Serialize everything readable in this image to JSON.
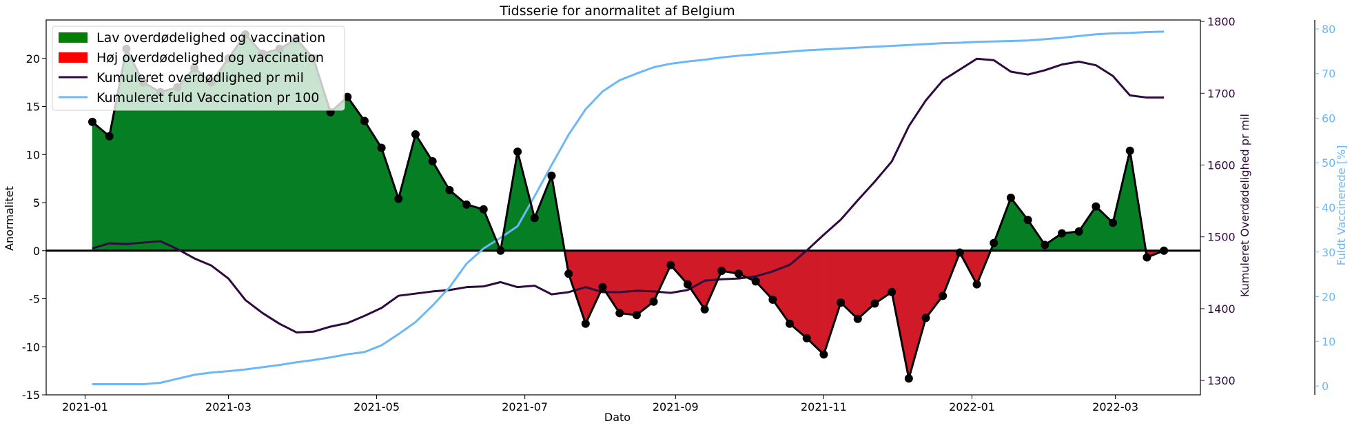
{
  "chart_data": {
    "type": "line",
    "title": "Tidsserie for anormalitet af Belgium",
    "xlabel": "Dato",
    "ylabel": "Anormalitet",
    "ylabel_right1": "Kumuleret Overdødelighed pr mil",
    "ylabel_right2": "Fuldt Vaccinerede [%]",
    "ylim": [
      -15,
      24
    ],
    "ylim_right1": [
      1280,
      1802
    ],
    "ylim_right2": [
      -2,
      82
    ],
    "x_ticks": [
      "2021-01",
      "2021-03",
      "2021-05",
      "2021-07",
      "2021-09",
      "2021-11",
      "2022-01",
      "2022-03"
    ],
    "x_tick_dates": [
      "2021-01-01",
      "2021-03-01",
      "2021-05-01",
      "2021-07-01",
      "2021-09-01",
      "2021-11-01",
      "2022-01-01",
      "2022-03-01"
    ],
    "y_ticks": [
      -15,
      -10,
      -5,
      0,
      5,
      10,
      15,
      20
    ],
    "y_ticks_right1": [
      1300,
      1400,
      1500,
      1600,
      1700,
      1800
    ],
    "y_ticks_right2": [
      0,
      10,
      20,
      30,
      40,
      50,
      60,
      70,
      80
    ],
    "legend": {
      "placement": "top-left",
      "entries": [
        {
          "label": "Lav overdødelighed og vaccination",
          "kind": "patch",
          "color": "#008000"
        },
        {
          "label": "Høj overdødelighed og vaccination",
          "kind": "patch",
          "color": "#ff0000"
        },
        {
          "label": "Kumuleret overdødlighed pr mil",
          "kind": "line",
          "color": "#2e0a3e"
        },
        {
          "label": "Kumuleret fuld Vaccination pr 100",
          "kind": "line",
          "color": "#6cb8f6"
        }
      ]
    },
    "colors": {
      "positive_fill": "#067f24",
      "negative_fill": "#d11a28",
      "anomaly_line": "#000000",
      "mortality_line": "#2e0a3e",
      "vaccination_line": "#6cb8f6"
    },
    "series": [
      {
        "key": "anomaly",
        "axis": "left",
        "dates": [
          "2021-01-04",
          "2021-01-11",
          "2021-01-18",
          "2021-01-25",
          "2021-02-01",
          "2021-02-08",
          "2021-02-15",
          "2021-02-22",
          "2021-03-01",
          "2021-03-08",
          "2021-03-15",
          "2021-03-22",
          "2021-03-29",
          "2021-04-05",
          "2021-04-12",
          "2021-04-19",
          "2021-04-26",
          "2021-05-03",
          "2021-05-10",
          "2021-05-17",
          "2021-05-24",
          "2021-05-31",
          "2021-06-07",
          "2021-06-14",
          "2021-06-21",
          "2021-06-28",
          "2021-07-05",
          "2021-07-12",
          "2021-07-19",
          "2021-07-26",
          "2021-08-02",
          "2021-08-09",
          "2021-08-16",
          "2021-08-23",
          "2021-08-30",
          "2021-09-06",
          "2021-09-13",
          "2021-09-20",
          "2021-09-27",
          "2021-10-04",
          "2021-10-11",
          "2021-10-18",
          "2021-10-25",
          "2021-11-01",
          "2021-11-08",
          "2021-11-15",
          "2021-11-22",
          "2021-11-29",
          "2021-12-06",
          "2021-12-13",
          "2021-12-20",
          "2021-12-27",
          "2022-01-03",
          "2022-01-10",
          "2022-01-17",
          "2022-01-24",
          "2022-01-31",
          "2022-02-07",
          "2022-02-14",
          "2022-02-21",
          "2022-02-28",
          "2022-03-07",
          "2022-03-14",
          "2022-03-21"
        ],
        "values": [
          13.4,
          11.9,
          21.0,
          17.5,
          16.5,
          17.0,
          19.0,
          17.5,
          20.0,
          22.5,
          20.5,
          21.0,
          22.0,
          20.0,
          14.4,
          16.0,
          13.5,
          10.7,
          5.4,
          12.1,
          9.3,
          6.3,
          4.8,
          4.3,
          0.0,
          10.3,
          3.4,
          7.8,
          -2.4,
          -7.6,
          -3.8,
          -6.5,
          -6.7,
          -5.3,
          -1.5,
          -3.5,
          -6.1,
          -2.1,
          -2.4,
          -3.2,
          -5.1,
          -7.6,
          -9.1,
          -10.8,
          -5.4,
          -7.1,
          -5.5,
          -4.3,
          -13.3,
          -7.0,
          -4.7,
          -0.2,
          -3.5,
          0.8,
          5.5,
          3.2,
          0.6,
          1.8,
          2.0,
          4.6,
          2.9,
          10.4,
          -0.7,
          0.0
        ]
      },
      {
        "key": "mortality",
        "axis": "right1",
        "name": "Kumuleret overdødlighed pr mil",
        "dates": [
          "2021-01-04",
          "2021-01-11",
          "2021-01-18",
          "2021-01-25",
          "2021-02-01",
          "2021-02-08",
          "2021-02-15",
          "2021-02-22",
          "2021-03-01",
          "2021-03-08",
          "2021-03-15",
          "2021-03-22",
          "2021-03-29",
          "2021-04-05",
          "2021-04-12",
          "2021-04-19",
          "2021-04-26",
          "2021-05-03",
          "2021-05-10",
          "2021-05-17",
          "2021-05-24",
          "2021-05-31",
          "2021-06-07",
          "2021-06-14",
          "2021-06-21",
          "2021-06-28",
          "2021-07-05",
          "2021-07-12",
          "2021-07-19",
          "2021-07-26",
          "2021-08-02",
          "2021-08-09",
          "2021-08-16",
          "2021-08-23",
          "2021-08-30",
          "2021-09-06",
          "2021-09-13",
          "2021-09-20",
          "2021-09-27",
          "2021-10-04",
          "2021-10-11",
          "2021-10-18",
          "2021-10-25",
          "2021-11-01",
          "2021-11-08",
          "2021-11-15",
          "2021-11-22",
          "2021-11-29",
          "2021-12-06",
          "2021-12-13",
          "2021-12-20",
          "2021-12-27",
          "2022-01-03",
          "2022-01-10",
          "2022-01-17",
          "2022-01-24",
          "2022-01-31",
          "2022-02-07",
          "2022-02-14",
          "2022-02-21",
          "2022-02-28",
          "2022-03-07",
          "2022-03-14",
          "2022-03-21"
        ],
        "values": [
          1484,
          1491,
          1490,
          1492,
          1494,
          1483,
          1470,
          1460,
          1442,
          1412,
          1394,
          1379,
          1367,
          1368,
          1375,
          1380,
          1390,
          1401,
          1418,
          1421,
          1424,
          1426,
          1430,
          1431,
          1437,
          1430,
          1432,
          1420,
          1423,
          1430,
          1423,
          1423,
          1425,
          1424,
          1422,
          1426,
          1439,
          1441,
          1442,
          1445,
          1452,
          1461,
          1481,
          1503,
          1524,
          1551,
          1577,
          1605,
          1654,
          1690,
          1718,
          1733,
          1748,
          1746,
          1730,
          1726,
          1732,
          1740,
          1744,
          1739,
          1724,
          1697,
          1694,
          1694
        ]
      },
      {
        "key": "vaccination",
        "axis": "right2",
        "name": "Kumuleret fuld Vaccination pr 100",
        "dates": [
          "2021-01-04",
          "2021-01-11",
          "2021-01-18",
          "2021-01-25",
          "2021-02-01",
          "2021-02-08",
          "2021-02-15",
          "2021-02-22",
          "2021-03-01",
          "2021-03-08",
          "2021-03-15",
          "2021-03-22",
          "2021-03-29",
          "2021-04-05",
          "2021-04-12",
          "2021-04-19",
          "2021-04-26",
          "2021-05-03",
          "2021-05-10",
          "2021-05-17",
          "2021-05-24",
          "2021-05-31",
          "2021-06-07",
          "2021-06-14",
          "2021-06-21",
          "2021-06-28",
          "2021-07-05",
          "2021-07-12",
          "2021-07-19",
          "2021-07-26",
          "2021-08-02",
          "2021-08-09",
          "2021-08-16",
          "2021-08-23",
          "2021-08-30",
          "2021-09-06",
          "2021-09-13",
          "2021-09-20",
          "2021-09-27",
          "2021-10-04",
          "2021-10-11",
          "2021-10-18",
          "2021-10-25",
          "2021-11-01",
          "2021-11-08",
          "2021-11-15",
          "2021-11-22",
          "2021-11-29",
          "2021-12-06",
          "2021-12-13",
          "2021-12-20",
          "2021-12-27",
          "2022-01-03",
          "2022-01-10",
          "2022-01-17",
          "2022-01-24",
          "2022-01-31",
          "2022-02-07",
          "2022-02-14",
          "2022-02-21",
          "2022-02-28",
          "2022-03-07",
          "2022-03-14",
          "2022-03-21"
        ],
        "values": [
          0.4,
          0.4,
          0.4,
          0.4,
          0.7,
          1.6,
          2.5,
          3.0,
          3.3,
          3.7,
          4.2,
          4.7,
          5.3,
          5.8,
          6.4,
          7.1,
          7.6,
          9.1,
          11.6,
          14.3,
          18.0,
          22.1,
          27.4,
          30.8,
          33.2,
          35.8,
          42.5,
          49.5,
          56.3,
          62.0,
          66.0,
          68.5,
          70.0,
          71.4,
          72.2,
          72.7,
          73.1,
          73.6,
          74.0,
          74.3,
          74.6,
          74.9,
          75.2,
          75.4,
          75.6,
          75.8,
          76.0,
          76.2,
          76.4,
          76.6,
          76.8,
          76.9,
          77.1,
          77.2,
          77.3,
          77.4,
          77.7,
          78.0,
          78.4,
          78.8,
          79.0,
          79.1,
          79.3,
          79.4
        ]
      }
    ]
  }
}
